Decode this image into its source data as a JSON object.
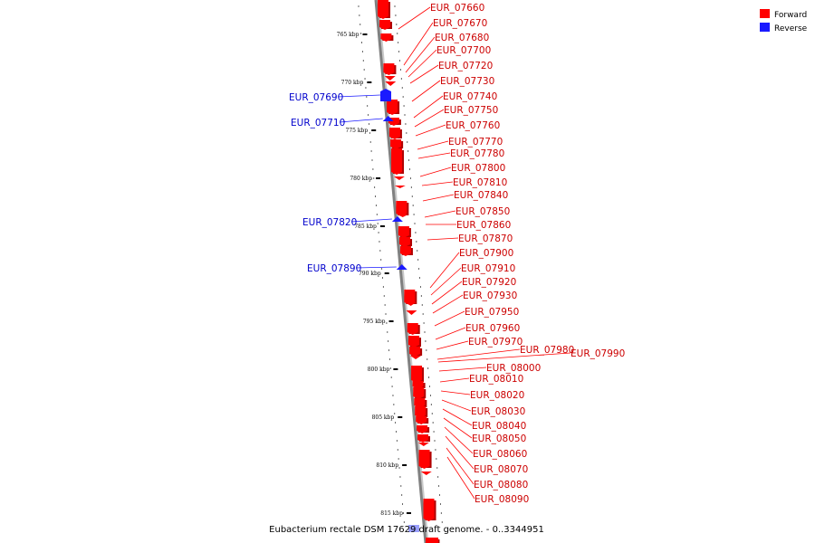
{
  "caption": "Eubacterium rectale DSM 17629 draft genome. - 0..3344951",
  "legend": [
    {
      "label": "Forward",
      "color": "#ff0000"
    },
    {
      "label": "Reverse",
      "color": "#1a1aff"
    }
  ],
  "ticks": [
    "765 kbp",
    "770 kbp",
    "775 kbp",
    "780 kbp",
    "785 kbp",
    "790 kbp",
    "795 kbp",
    "800 kbp",
    "805 kbp",
    "810 kbp",
    "815 kbp"
  ],
  "forward_genes": [
    "EUR_07660",
    "EUR_07670",
    "EUR_07680",
    "EUR_07700",
    "EUR_07720",
    "EUR_07730",
    "EUR_07740",
    "EUR_07750",
    "EUR_07760",
    "EUR_07770",
    "EUR_07780",
    "EUR_07800",
    "EUR_07810",
    "EUR_07840",
    "EUR_07850",
    "EUR_07860",
    "EUR_07870",
    "EUR_07900",
    "EUR_07910",
    "EUR_07920",
    "EUR_07930",
    "EUR_07950",
    "EUR_07960",
    "EUR_07970",
    "EUR_07980",
    "EUR_07990",
    "EUR_08000",
    "EUR_08010",
    "EUR_08020",
    "EUR_08030",
    "EUR_08040",
    "EUR_08050",
    "EUR_08060",
    "EUR_08070",
    "EUR_08080",
    "EUR_08090"
  ],
  "reverse_genes": [
    "EUR_07690",
    "EUR_07710",
    "EUR_07820",
    "EUR_07890"
  ],
  "colors": {
    "forward": "#ff0000",
    "forward_dark": "#b00000",
    "reverse": "#1a1aff",
    "backbone": "#808080"
  }
}
